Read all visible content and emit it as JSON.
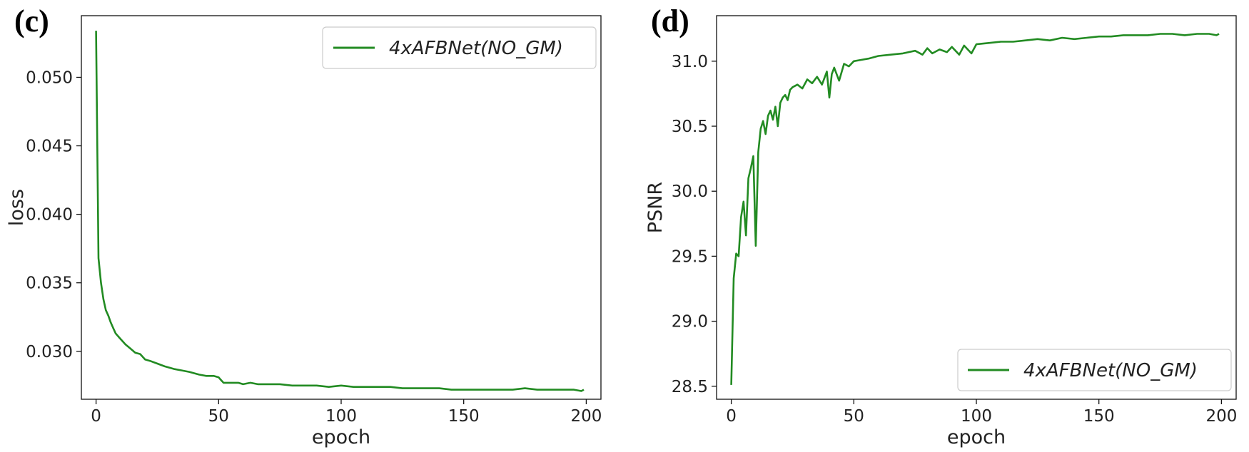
{
  "chart_data": [
    {
      "panel_label": "(c)",
      "type": "line",
      "xlabel": "epoch",
      "ylabel": "loss",
      "xlim": [
        -6,
        206
      ],
      "ylim": [
        0.0265,
        0.0545
      ],
      "xticks": [
        0,
        50,
        100,
        150,
        200
      ],
      "xtick_labels": [
        "0",
        "50",
        "100",
        "150",
        "200"
      ],
      "yticks": [
        0.03,
        0.035,
        0.04,
        0.045,
        0.05
      ],
      "ytick_labels": [
        "0.030",
        "0.035",
        "0.040",
        "0.045",
        "0.050"
      ],
      "grid": false,
      "legend_position": "upper-right",
      "series": [
        {
          "name": "4xAFBNet(NO_GM)",
          "color": "#228b22",
          "x": [
            0,
            1,
            2,
            3,
            4,
            5,
            6,
            7,
            8,
            9,
            10,
            12,
            14,
            16,
            18,
            20,
            22,
            25,
            28,
            30,
            32,
            35,
            38,
            40,
            42,
            45,
            48,
            50,
            51,
            52,
            55,
            58,
            60,
            63,
            66,
            70,
            75,
            80,
            85,
            90,
            95,
            100,
            105,
            110,
            115,
            120,
            125,
            130,
            135,
            140,
            145,
            150,
            155,
            160,
            165,
            170,
            175,
            180,
            185,
            190,
            195,
            198,
            199
          ],
          "y": [
            0.0534,
            0.0368,
            0.035,
            0.0338,
            0.033,
            0.0326,
            0.0321,
            0.0317,
            0.0313,
            0.0311,
            0.0309,
            0.0305,
            0.0302,
            0.0299,
            0.0298,
            0.0294,
            0.0293,
            0.0291,
            0.0289,
            0.0288,
            0.0287,
            0.0286,
            0.0285,
            0.0284,
            0.0283,
            0.0282,
            0.0282,
            0.0281,
            0.0279,
            0.0277,
            0.0277,
            0.0277,
            0.0276,
            0.0277,
            0.0276,
            0.0276,
            0.0276,
            0.0275,
            0.0275,
            0.0275,
            0.0274,
            0.0275,
            0.0274,
            0.0274,
            0.0274,
            0.0274,
            0.0273,
            0.0273,
            0.0273,
            0.0273,
            0.0272,
            0.0272,
            0.0272,
            0.0272,
            0.0272,
            0.0272,
            0.0273,
            0.0272,
            0.0272,
            0.0272,
            0.0272,
            0.0271,
            0.0272
          ]
        }
      ]
    },
    {
      "panel_label": "(d)",
      "type": "line",
      "xlabel": "epoch",
      "ylabel": "PSNR",
      "xlim": [
        -6,
        206
      ],
      "ylim": [
        28.4,
        31.35
      ],
      "xticks": [
        0,
        50,
        100,
        150,
        200
      ],
      "xtick_labels": [
        "0",
        "50",
        "100",
        "150",
        "200"
      ],
      "yticks": [
        28.5,
        29.0,
        29.5,
        30.0,
        30.5,
        31.0
      ],
      "ytick_labels": [
        "28.5",
        "29.0",
        "29.5",
        "30.0",
        "30.5",
        "31.0"
      ],
      "grid": false,
      "legend_position": "lower-right",
      "series": [
        {
          "name": "4xAFBNet(NO_GM)",
          "color": "#228b22",
          "x": [
            0,
            1,
            2,
            3,
            4,
            5,
            6,
            7,
            8,
            9,
            10,
            11,
            12,
            13,
            14,
            15,
            16,
            17,
            18,
            19,
            20,
            21,
            22,
            23,
            24,
            25,
            27,
            29,
            31,
            33,
            35,
            37,
            39,
            40,
            41,
            42,
            44,
            46,
            48,
            50,
            53,
            56,
            60,
            65,
            70,
            75,
            78,
            80,
            82,
            85,
            88,
            90,
            93,
            95,
            98,
            100,
            105,
            110,
            115,
            120,
            125,
            130,
            135,
            140,
            145,
            150,
            155,
            160,
            165,
            170,
            175,
            180,
            185,
            190,
            195,
            198,
            199
          ],
          "y": [
            28.51,
            29.33,
            29.52,
            29.5,
            29.8,
            29.92,
            29.66,
            30.1,
            30.18,
            30.27,
            29.58,
            30.3,
            30.48,
            30.54,
            30.44,
            30.58,
            30.62,
            30.55,
            30.65,
            30.5,
            30.68,
            30.72,
            30.74,
            30.7,
            30.78,
            30.8,
            30.82,
            30.79,
            30.86,
            30.83,
            30.88,
            30.82,
            30.92,
            30.72,
            30.9,
            30.95,
            30.85,
            30.98,
            30.96,
            31.0,
            31.01,
            31.02,
            31.04,
            31.05,
            31.06,
            31.08,
            31.05,
            31.1,
            31.06,
            31.09,
            31.07,
            31.11,
            31.05,
            31.12,
            31.06,
            31.13,
            31.14,
            31.15,
            31.15,
            31.16,
            31.17,
            31.16,
            31.18,
            31.17,
            31.18,
            31.19,
            31.19,
            31.2,
            31.2,
            31.2,
            31.21,
            31.21,
            31.2,
            31.21,
            31.21,
            31.2,
            31.21
          ]
        }
      ]
    }
  ]
}
